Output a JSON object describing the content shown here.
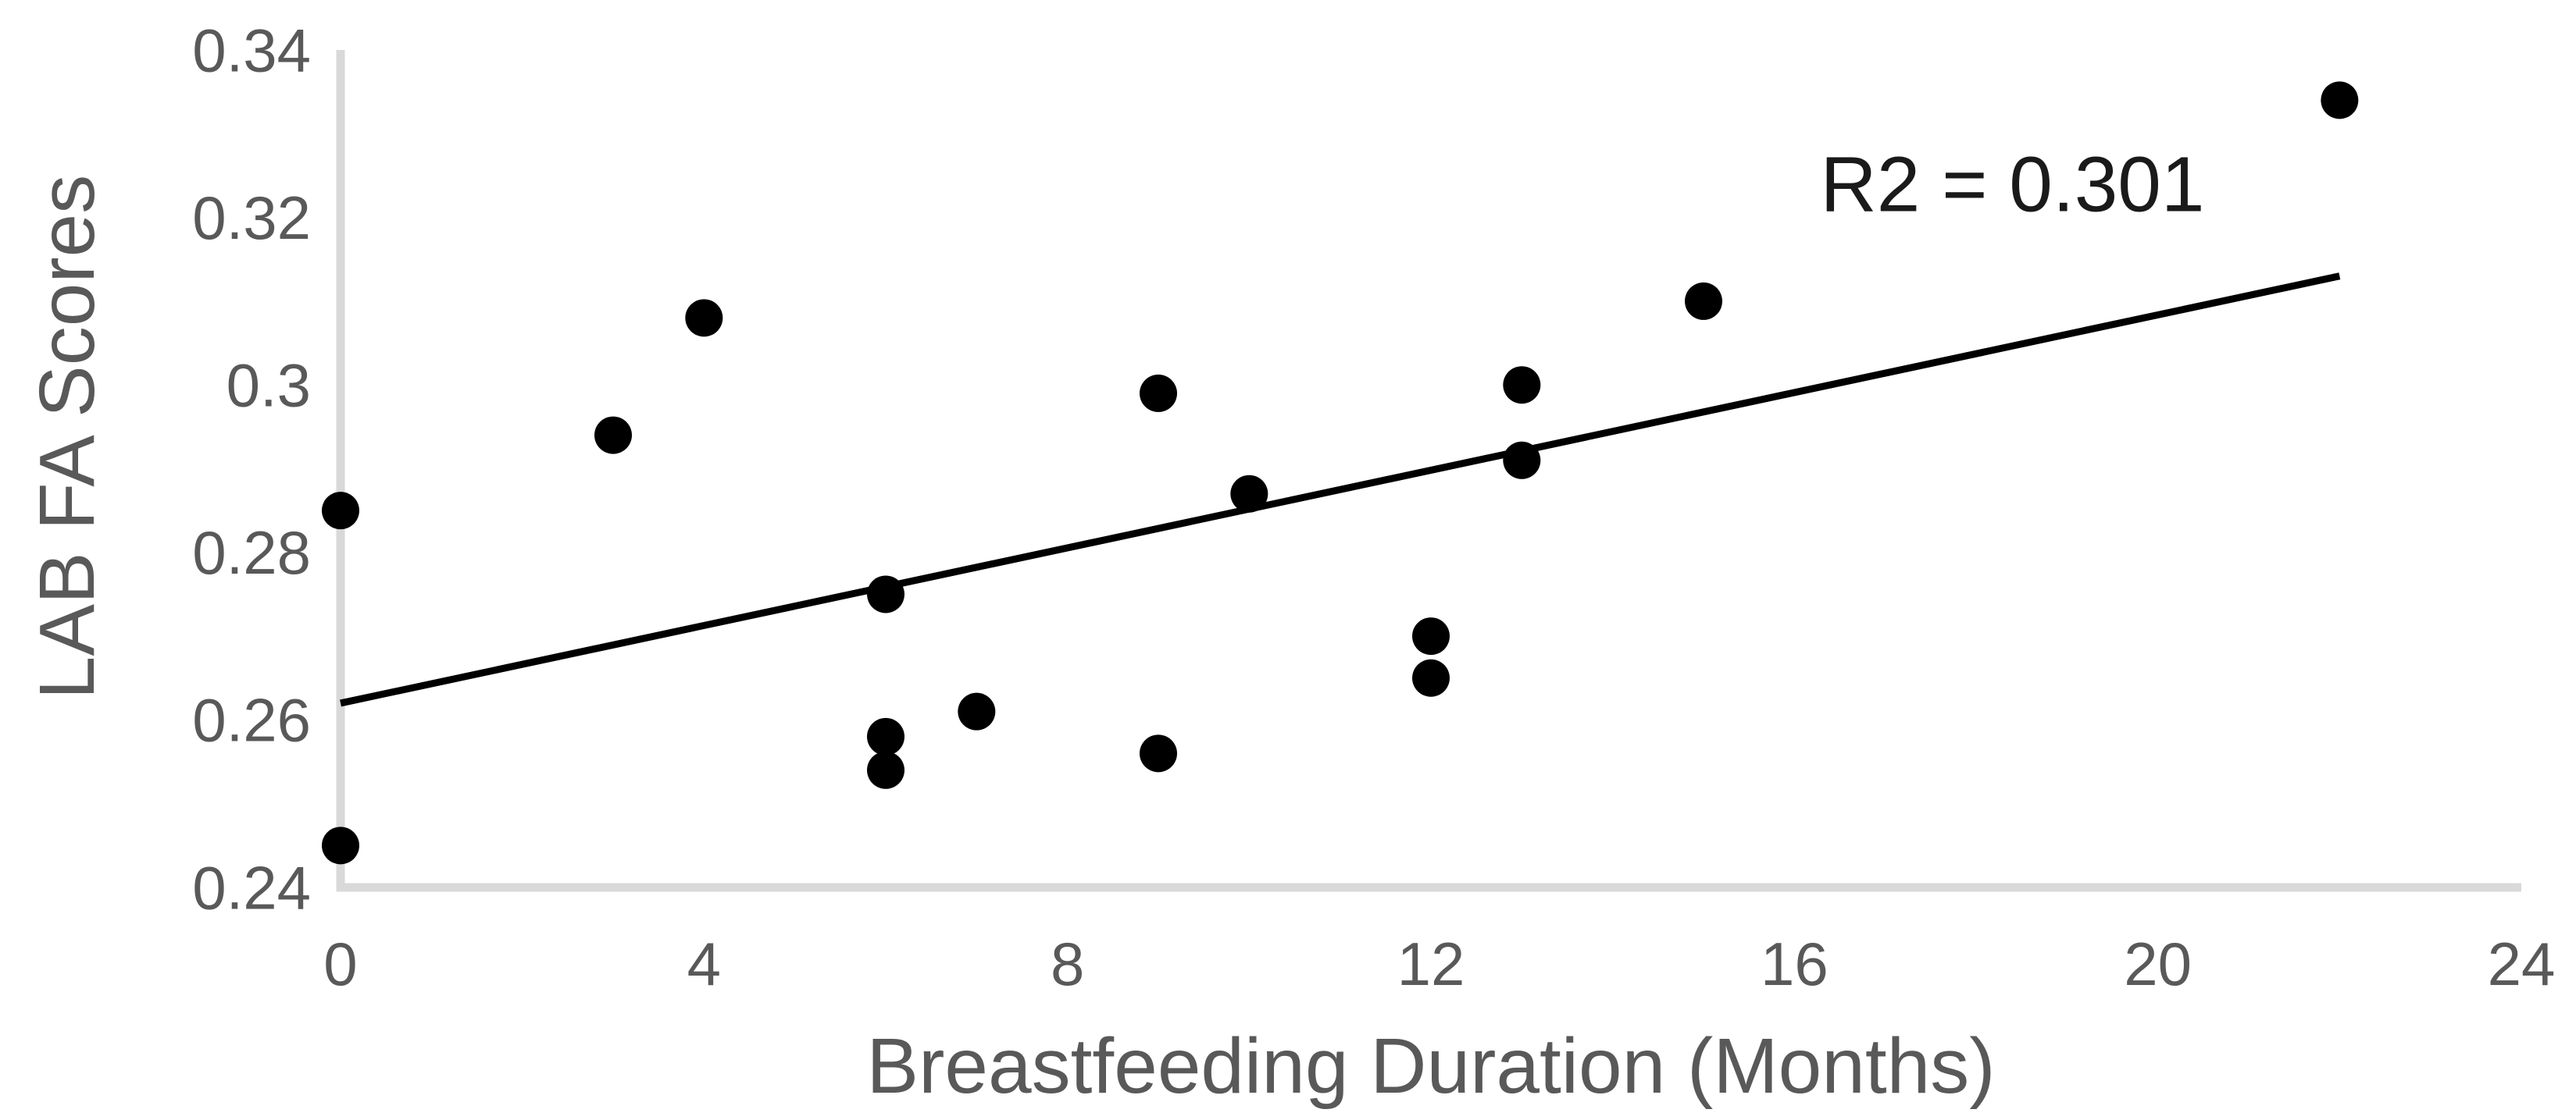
{
  "chart_data": {
    "type": "scatter",
    "title": "",
    "xlabel": "Breastfeeding Duration (Months)",
    "ylabel": "LAB FA Scores",
    "xlim": [
      0,
      24
    ],
    "ylim": [
      0.24,
      0.34
    ],
    "x_ticks": [
      0,
      4,
      8,
      12,
      16,
      20,
      24
    ],
    "x_tick_labels": [
      "0",
      "4",
      "8",
      "12",
      "16",
      "20",
      "24"
    ],
    "y_ticks": [
      0.24,
      0.26,
      0.28,
      0.3,
      0.32,
      0.34
    ],
    "y_tick_labels": [
      "0.24",
      "0.26",
      "0.28",
      "0.3",
      "0.32",
      "0.34"
    ],
    "grid": false,
    "legend": "none",
    "points": [
      [
        0,
        0.285
      ],
      [
        0,
        0.245
      ],
      [
        3,
        0.294
      ],
      [
        4,
        0.308
      ],
      [
        6,
        0.275
      ],
      [
        6,
        0.258
      ],
      [
        6,
        0.254
      ],
      [
        7,
        0.261
      ],
      [
        9,
        0.299
      ],
      [
        9,
        0.256
      ],
      [
        10,
        0.287
      ],
      [
        12,
        0.27
      ],
      [
        12,
        0.265
      ],
      [
        13,
        0.3
      ],
      [
        13,
        0.291
      ],
      [
        15,
        0.31
      ],
      [
        22,
        0.334
      ]
    ],
    "trendline": {
      "x_start": 0,
      "y_start": 0.262,
      "x_end": 22,
      "y_end": 0.313
    },
    "annotation": {
      "text": "R2 = 0.301",
      "x": 18.4,
      "y": 0.324
    },
    "colors": {
      "point": "#000000",
      "trendline": "#000000",
      "axis_line": "#d9d9d9",
      "tick_label": "#595959",
      "axis_title": "#595959",
      "annotation": "#1a1a1a",
      "background": "#ffffff"
    }
  }
}
